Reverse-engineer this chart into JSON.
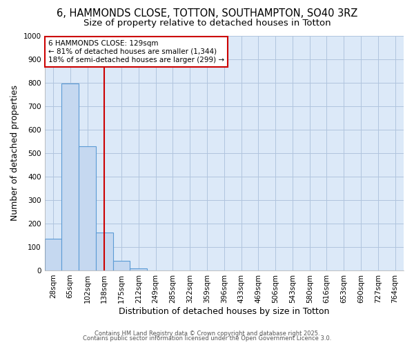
{
  "title_line1": "6, HAMMONDS CLOSE, TOTTON, SOUTHAMPTON, SO40 3RZ",
  "title_line2": "Size of property relative to detached houses in Totton",
  "xlabel": "Distribution of detached houses by size in Totton",
  "ylabel": "Number of detached properties",
  "bar_labels": [
    "28sqm",
    "65sqm",
    "102sqm",
    "138sqm",
    "175sqm",
    "212sqm",
    "249sqm",
    "285sqm",
    "322sqm",
    "359sqm",
    "396sqm",
    "433sqm",
    "469sqm",
    "506sqm",
    "543sqm",
    "580sqm",
    "616sqm",
    "653sqm",
    "690sqm",
    "727sqm",
    "764sqm"
  ],
  "bar_heights": [
    135,
    795,
    530,
    160,
    40,
    10,
    0,
    0,
    0,
    0,
    0,
    0,
    0,
    0,
    0,
    0,
    0,
    0,
    0,
    0,
    0
  ],
  "bar_color": "#c5d8f0",
  "bar_edge_color": "#5b9bd5",
  "bar_edge_width": 0.8,
  "grid_color": "#b0c4de",
  "background_color": "#dce9f8",
  "ylim": [
    0,
    1000
  ],
  "yticks": [
    0,
    100,
    200,
    300,
    400,
    500,
    600,
    700,
    800,
    900,
    1000
  ],
  "vline_x_index": 3.0,
  "vline_color": "#cc0000",
  "annotation_text": "6 HAMMONDS CLOSE: 129sqm\n← 81% of detached houses are smaller (1,344)\n18% of semi-detached houses are larger (299) →",
  "annotation_box_color": "#cc0000",
  "title_fontsize": 10.5,
  "subtitle_fontsize": 9.5,
  "axis_label_fontsize": 9,
  "tick_fontsize": 7.5,
  "footer_line1": "Contains HM Land Registry data © Crown copyright and database right 2025.",
  "footer_line2": "Contains public sector information licensed under the Open Government Licence 3.0."
}
